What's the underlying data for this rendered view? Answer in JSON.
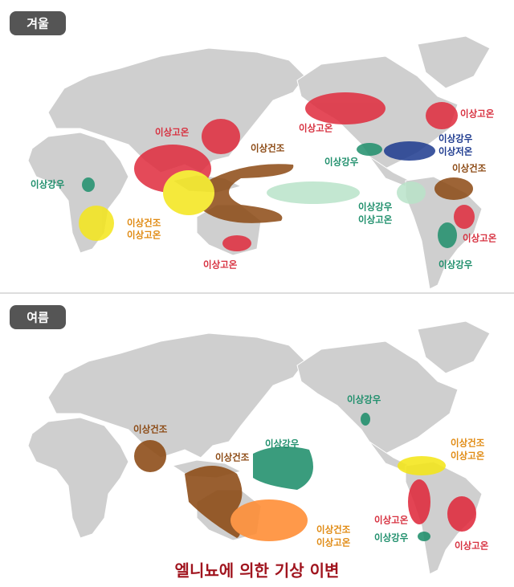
{
  "winter": {
    "label": "겨울",
    "annotations": [
      {
        "lines": [
          "이상고온"
        ]
      },
      {
        "lines": [
          "이상건조"
        ]
      },
      {
        "lines": [
          "이상강우"
        ]
      },
      {
        "lines": [
          "이상건조",
          "이상고온"
        ]
      },
      {
        "lines": [
          "이상고온"
        ]
      },
      {
        "lines": [
          "이상고온"
        ]
      },
      {
        "lines": [
          "이상고온"
        ]
      },
      {
        "lines": [
          "이상강우",
          "이상저온"
        ]
      },
      {
        "lines": [
          "이상강우"
        ]
      },
      {
        "lines": [
          "이상건조"
        ]
      },
      {
        "lines": [
          "이상강우",
          "이상고온"
        ]
      },
      {
        "lines": [
          "이상고온"
        ]
      },
      {
        "lines": [
          "이상강우"
        ]
      }
    ]
  },
  "summer": {
    "label": "여름",
    "annotations": [
      {
        "lines": [
          "이상강우"
        ]
      },
      {
        "lines": [
          "이상건조"
        ]
      },
      {
        "lines": [
          "이상강우"
        ]
      },
      {
        "lines": [
          "이상건조"
        ]
      },
      {
        "lines": [
          "이상건조",
          "이상고온"
        ]
      },
      {
        "lines": [
          "이상건조",
          "이상고온"
        ]
      },
      {
        "lines": [
          "이상고온"
        ]
      },
      {
        "lines": [
          "이상강우"
        ]
      },
      {
        "lines": [
          "이상고온"
        ]
      }
    ]
  },
  "title": "엘니뇨에 의한 기상 이변"
}
